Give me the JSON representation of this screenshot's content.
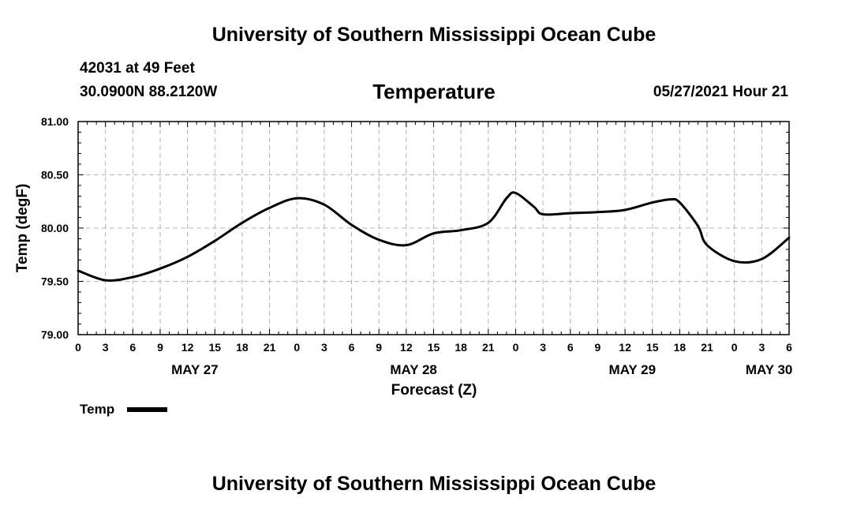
{
  "header": {
    "title": "University of Southern Mississippi Ocean Cube",
    "station": "42031 at 49 Feet",
    "coords": "30.0900N  88.2120W",
    "chart_title": "Temperature",
    "date": "05/27/2021 Hour 21"
  },
  "footer": {
    "title": "University of Southern Mississippi Ocean Cube"
  },
  "legend": {
    "label": "Temp"
  },
  "chart_data": {
    "type": "line",
    "title": "Temperature",
    "xlabel": "Forecast (Z)",
    "ylabel": "Temp (degF)",
    "ylim": [
      79.0,
      81.0
    ],
    "xlim": [
      0,
      78
    ],
    "y_ticks": [
      "79.00",
      "79.50",
      "80.00",
      "80.50",
      "81.00"
    ],
    "x_tick_labels": [
      "0",
      "3",
      "6",
      "9",
      "12",
      "15",
      "18",
      "21",
      "0",
      "3",
      "6",
      "9",
      "12",
      "15",
      "18",
      "21",
      "0",
      "3",
      "6",
      "9",
      "12",
      "15",
      "18",
      "21",
      "0",
      "3",
      "6"
    ],
    "day_labels": [
      {
        "label": "MAY 27",
        "hour": 12.8
      },
      {
        "label": "MAY 28",
        "hour": 36.8
      },
      {
        "label": "MAY 29",
        "hour": 60.8
      },
      {
        "label": "MAY 30",
        "hour": 75.8
      }
    ],
    "grid": true,
    "series": [
      {
        "name": "Temp",
        "color": "#000000",
        "x": [
          0,
          3,
          6,
          9,
          12,
          15,
          18,
          21,
          24,
          27,
          30,
          33,
          36,
          39,
          42,
          45,
          47,
          48,
          50,
          51,
          54,
          57,
          60,
          63,
          65,
          66,
          68,
          69,
          72,
          75,
          78
        ],
        "values": [
          79.6,
          79.51,
          79.54,
          79.62,
          79.73,
          79.88,
          80.05,
          80.19,
          80.28,
          80.22,
          80.03,
          79.89,
          79.84,
          79.95,
          79.98,
          80.05,
          80.28,
          80.33,
          80.2,
          80.13,
          80.14,
          80.15,
          80.17,
          80.24,
          80.27,
          80.24,
          80.02,
          79.84,
          79.69,
          79.71,
          79.91
        ]
      }
    ]
  }
}
